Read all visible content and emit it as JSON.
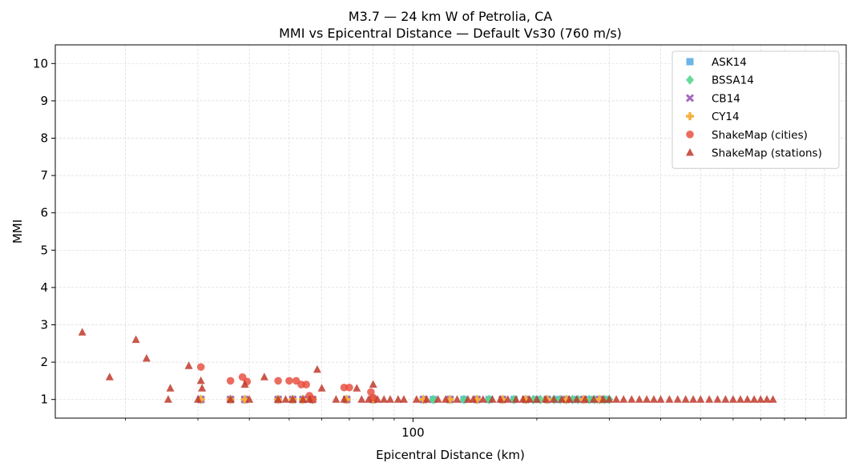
{
  "chart_data": {
    "type": "scatter",
    "title": "M3.7 — 24 km W of Petrolia, CA",
    "subtitle": "MMI vs Epicentral Distance — Default Vs30 (760 m/s)",
    "xlabel": "Epicentral Distance (km)",
    "ylabel": "MMI",
    "xscale": "log",
    "xlim": [
      13.5,
      1130
    ],
    "ylim": [
      0.5,
      10.5
    ],
    "xticks": [
      100
    ],
    "xtick_labels": [
      "100"
    ],
    "yticks": [
      1,
      2,
      3,
      4,
      5,
      6,
      7,
      8,
      9,
      10
    ],
    "ytick_labels": [
      "1",
      "2",
      "3",
      "4",
      "5",
      "6",
      "7",
      "8",
      "9",
      "10"
    ],
    "grid": true,
    "legend_position": "top-right",
    "series": [
      {
        "name": "ASK14",
        "marker": "square",
        "color": "#5dade2",
        "x": [
          30.5,
          36,
          39,
          47,
          51,
          54,
          57,
          69,
          80,
          106,
          112,
          123,
          133,
          143,
          153,
          165,
          176,
          188,
          200,
          212,
          224,
          236,
          248,
          260,
          272,
          284,
          296
        ],
        "y": [
          1,
          1,
          1,
          1,
          1,
          1,
          1,
          1,
          1,
          1,
          1,
          1,
          1,
          1,
          1,
          1,
          1,
          1,
          1,
          1,
          1,
          1,
          1,
          1,
          1,
          1,
          1
        ]
      },
      {
        "name": "BSSA14",
        "marker": "diamond",
        "color": "#58d68d",
        "x": [
          30.5,
          36,
          39,
          47,
          51,
          54,
          57,
          69,
          80,
          106,
          112,
          123,
          133,
          143,
          153,
          165,
          176,
          188,
          196,
          204,
          212,
          220,
          228,
          236,
          244,
          252,
          260,
          268,
          276,
          284,
          292,
          300
        ],
        "y": [
          1,
          1,
          1,
          1,
          1,
          1,
          1,
          1,
          1,
          1,
          1,
          1,
          1,
          1,
          1,
          1,
          1,
          1,
          1,
          1,
          1,
          1,
          1,
          1,
          1,
          1,
          1,
          1,
          1,
          1,
          1,
          1
        ]
      },
      {
        "name": "CB14",
        "marker": "x",
        "color": "#a569bd",
        "x": [
          30.5,
          36,
          39,
          47,
          51,
          54,
          57,
          69,
          80,
          106,
          123,
          143,
          165,
          188,
          212,
          236,
          260,
          284
        ],
        "y": [
          1,
          1,
          1,
          1,
          1,
          1,
          1,
          1,
          1,
          1,
          1,
          1,
          1,
          1,
          1,
          1,
          1,
          1
        ]
      },
      {
        "name": "CY14",
        "marker": "plus",
        "color": "#f5b041",
        "x": [
          30.5,
          36,
          39,
          47,
          51,
          54,
          57,
          69,
          80,
          106,
          123,
          143,
          165,
          188,
          212,
          236,
          260,
          284
        ],
        "y": [
          1,
          1,
          1,
          1,
          1,
          1,
          1,
          1,
          1,
          1,
          1,
          1,
          1,
          1,
          1,
          1,
          1,
          1
        ]
      },
      {
        "name": "ShakeMap (cities)",
        "marker": "circle",
        "color": "#e74c3c",
        "x": [
          30.5,
          36,
          38.5,
          39.5,
          47,
          50,
          52,
          53.5,
          55,
          56,
          57,
          68,
          70,
          79,
          80
        ],
        "y": [
          1.87,
          1.5,
          1.6,
          1.48,
          1.5,
          1.5,
          1.5,
          1.4,
          1.4,
          1.1,
          1.0,
          1.32,
          1.32,
          1.2,
          1.05
        ]
      },
      {
        "name": "ShakeMap (stations)",
        "marker": "triangle",
        "color": "#c0392b",
        "x": [
          15.7,
          18.3,
          21.2,
          22.5,
          25.4,
          25.7,
          28.5,
          30,
          30.5,
          30.7,
          36,
          39,
          40,
          43.5,
          47,
          49,
          51,
          54,
          56,
          58.5,
          60,
          65,
          68,
          73,
          75,
          78,
          80,
          82,
          85,
          88,
          92,
          95,
          102,
          108,
          115,
          120,
          128,
          136,
          140,
          148,
          156,
          163,
          170,
          178,
          185,
          192,
          200,
          210,
          220,
          230,
          240,
          250,
          262,
          275,
          290,
          300,
          312,
          325,
          340,
          355,
          370,
          385,
          400,
          420,
          440,
          460,
          480,
          500,
          525,
          550,
          575,
          600,
          625,
          650,
          675,
          700,
          725,
          750
        ],
        "y": [
          2.8,
          1.6,
          2.6,
          2.1,
          1.0,
          1.3,
          1.9,
          1.0,
          1.5,
          1.3,
          1.0,
          1.4,
          1.0,
          1.6,
          1.0,
          1.0,
          1.0,
          1.0,
          1.0,
          1.8,
          1.3,
          1.0,
          1.0,
          1.3,
          1.0,
          1.0,
          1.4,
          1.0,
          1.0,
          1.0,
          1.0,
          1.0,
          1.0,
          1.0,
          1.0,
          1.0,
          1.0,
          1.0,
          1.0,
          1.0,
          1.0,
          1.0,
          1.0,
          1.0,
          1.0,
          1.0,
          1.0,
          1.0,
          1.0,
          1.0,
          1.0,
          1.0,
          1.0,
          1.0,
          1.0,
          1.0,
          1.0,
          1.0,
          1.0,
          1.0,
          1.0,
          1.0,
          1.0,
          1.0,
          1.0,
          1.0,
          1.0,
          1.0,
          1.0,
          1.0,
          1.0,
          1.0,
          1.0,
          1.0,
          1.0,
          1.0,
          1.0,
          1.0
        ]
      }
    ]
  }
}
